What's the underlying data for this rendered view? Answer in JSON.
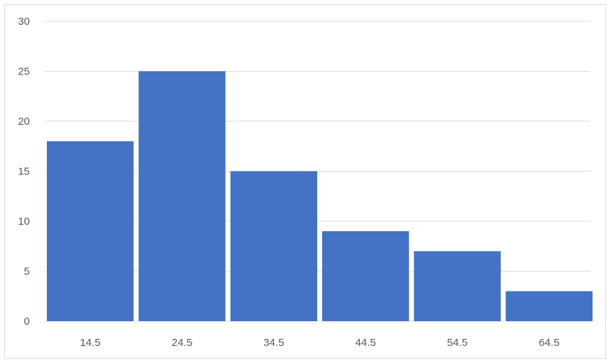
{
  "chart_data": {
    "type": "bar",
    "categories": [
      "14.5",
      "24.5",
      "34.5",
      "44.5",
      "54.5",
      "64.5"
    ],
    "values": [
      18,
      25,
      15,
      9,
      7,
      3
    ],
    "ylim": [
      0,
      30
    ],
    "yticks": [
      "0",
      "5",
      "10",
      "15",
      "20",
      "25",
      "30"
    ],
    "grid": true,
    "bar_color": "#4472c4",
    "gridline_color": "#d9d9d9"
  }
}
